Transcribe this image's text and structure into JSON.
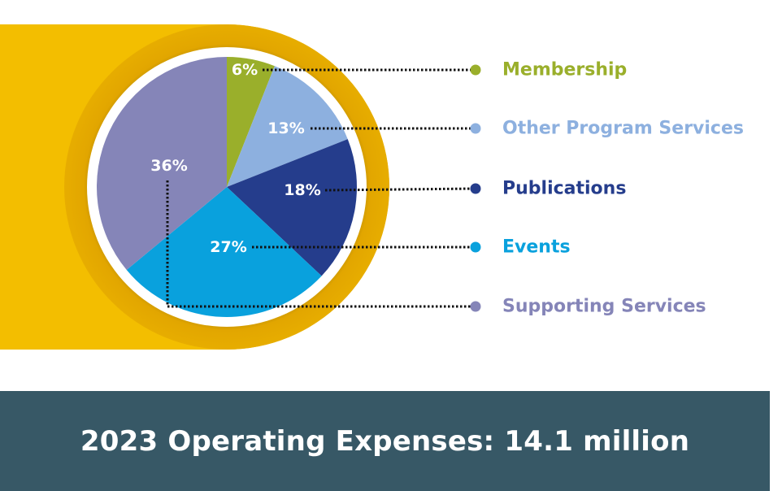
{
  "chart_data": {
    "type": "pie",
    "title": "2023 Operating Expenses: 14.1 million",
    "slices": [
      {
        "name": "Membership",
        "value": 6,
        "label": "6%",
        "color": "#9aaf2b",
        "legend_color": "#9aaf2b"
      },
      {
        "name": "Other Program Services",
        "value": 13,
        "label": "13%",
        "color": "#8db0df",
        "legend_color": "#8db0df"
      },
      {
        "name": "Publications",
        "value": 18,
        "label": "18%",
        "color": "#253d8c",
        "legend_color": "#253d8c"
      },
      {
        "name": "Events",
        "value": 27,
        "label": "27%",
        "color": "#09a1dd",
        "legend_color": "#09a1dd"
      },
      {
        "name": "Supporting Services",
        "value": 36,
        "label": "36%",
        "color": "#8585b8",
        "legend_color": "#8585b8"
      }
    ],
    "legend_placement": "right"
  },
  "colors": {
    "accent_band": "#f3be00",
    "ring": "#e2a600",
    "footer_bg": "#375866",
    "leader_line": "#111111"
  }
}
